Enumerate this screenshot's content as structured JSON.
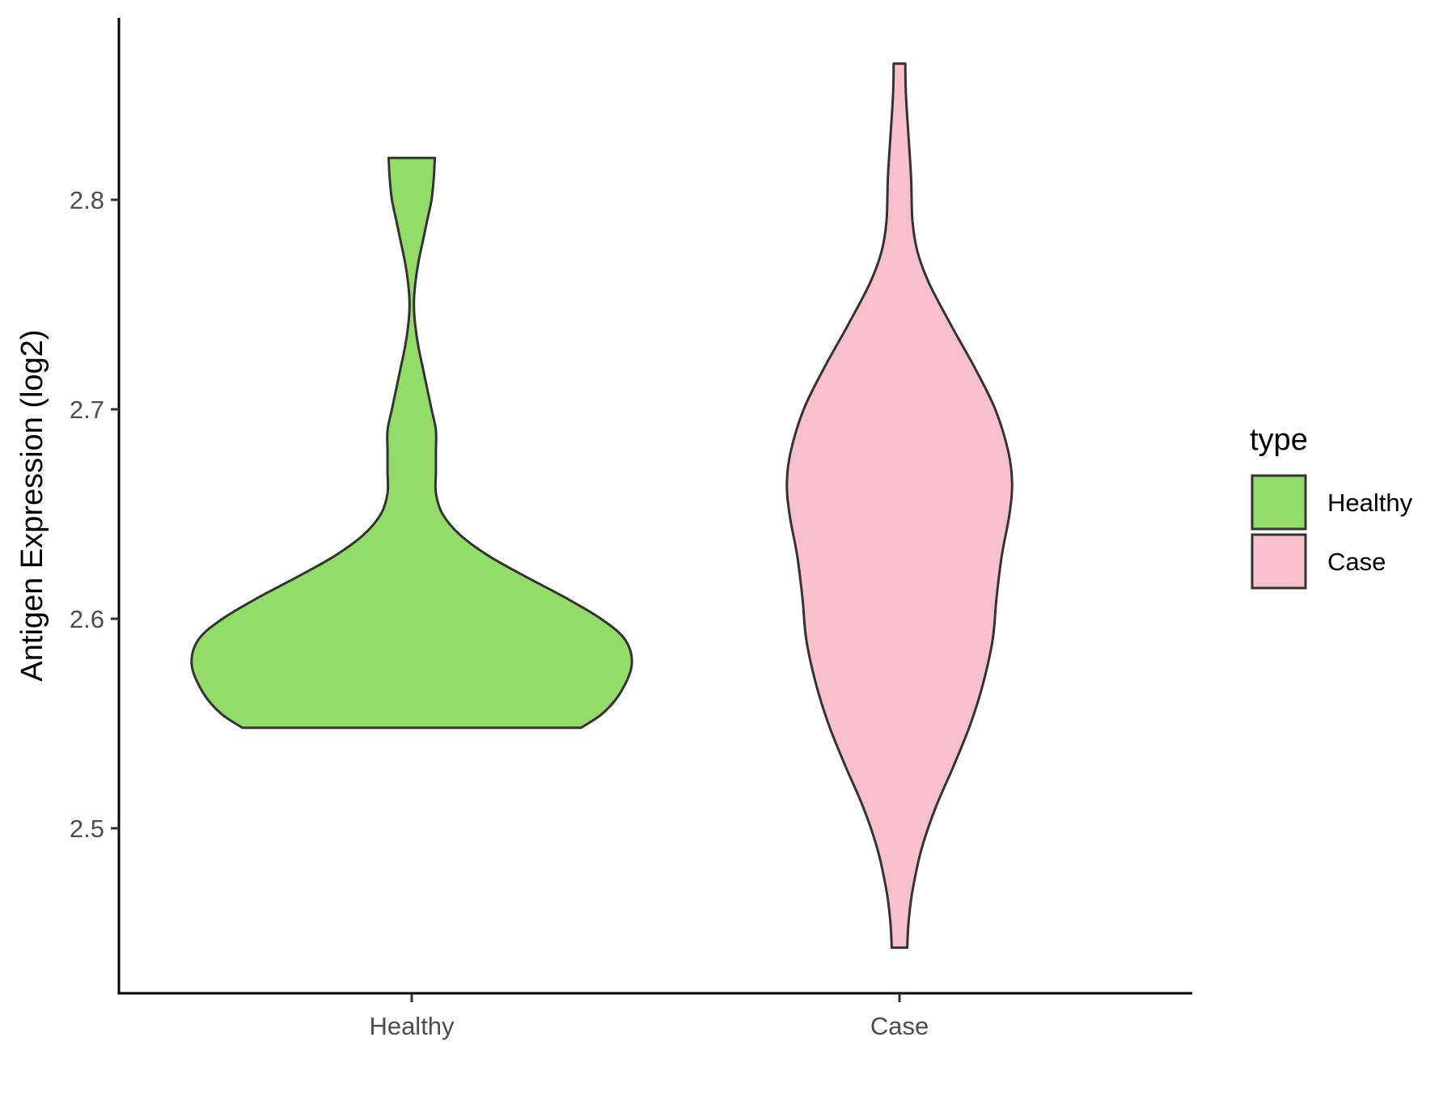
{
  "chart_data": {
    "type": "violin",
    "title": "",
    "xlabel": "",
    "ylabel": "Antigen Expression (log2)",
    "categories": [
      "Healthy",
      "Case"
    ],
    "ylim": [
      2.425,
      2.885
    ],
    "yticks": [
      "2.5",
      "2.6",
      "2.7",
      "2.8"
    ],
    "grid": false,
    "legend": {
      "title": "type",
      "position": "right",
      "entries": [
        "Healthy",
        "Case"
      ]
    },
    "series": [
      {
        "name": "Healthy",
        "color": "#93DC6A",
        "y_min": 2.548,
        "y_max": 2.82,
        "relative_width_profile": [
          [
            2.548,
            0.77
          ],
          [
            2.555,
            0.87
          ],
          [
            2.565,
            0.95
          ],
          [
            2.578,
            1.0
          ],
          [
            2.59,
            0.97
          ],
          [
            2.6,
            0.86
          ],
          [
            2.61,
            0.7
          ],
          [
            2.62,
            0.52
          ],
          [
            2.63,
            0.35
          ],
          [
            2.64,
            0.22
          ],
          [
            2.65,
            0.14
          ],
          [
            2.66,
            0.11
          ],
          [
            2.67,
            0.11
          ],
          [
            2.68,
            0.11
          ],
          [
            2.69,
            0.11
          ],
          [
            2.7,
            0.09
          ],
          [
            2.71,
            0.07
          ],
          [
            2.72,
            0.05
          ],
          [
            2.73,
            0.03
          ],
          [
            2.74,
            0.016
          ],
          [
            2.75,
            0.01
          ],
          [
            2.76,
            0.016
          ],
          [
            2.77,
            0.03
          ],
          [
            2.78,
            0.05
          ],
          [
            2.79,
            0.07
          ],
          [
            2.8,
            0.09
          ],
          [
            2.81,
            0.1
          ],
          [
            2.82,
            0.105
          ]
        ]
      },
      {
        "name": "Case",
        "color": "#F7C0CB",
        "y_min": 2.443,
        "y_max": 2.865,
        "relative_width_profile": [
          [
            2.443,
            0.06
          ],
          [
            2.455,
            0.07
          ],
          [
            2.47,
            0.1
          ],
          [
            2.49,
            0.17
          ],
          [
            2.51,
            0.28
          ],
          [
            2.53,
            0.42
          ],
          [
            2.55,
            0.55
          ],
          [
            2.57,
            0.65
          ],
          [
            2.59,
            0.72
          ],
          [
            2.61,
            0.75
          ],
          [
            2.63,
            0.79
          ],
          [
            2.65,
            0.85
          ],
          [
            2.665,
            0.87
          ],
          [
            2.68,
            0.84
          ],
          [
            2.7,
            0.74
          ],
          [
            2.72,
            0.58
          ],
          [
            2.74,
            0.4
          ],
          [
            2.76,
            0.23
          ],
          [
            2.775,
            0.14
          ],
          [
            2.79,
            0.1
          ],
          [
            2.81,
            0.09
          ],
          [
            2.83,
            0.07
          ],
          [
            2.85,
            0.05
          ],
          [
            2.865,
            0.045
          ]
        ]
      }
    ]
  }
}
